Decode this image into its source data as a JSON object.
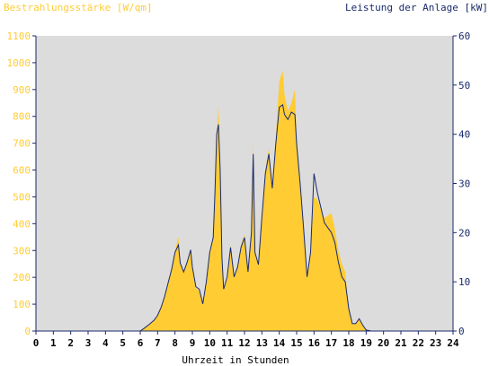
{
  "chart_data": {
    "type": "area",
    "title_left": "Bestrahlungsstärke [W/qm]",
    "title_right": "Leistung der Anlage [kW]",
    "xlabel": "Uhrzeit in Stunden",
    "x_ticks": [
      "0",
      "1",
      "2",
      "3",
      "4",
      "5",
      "6",
      "7",
      "8",
      "9",
      "10",
      "11",
      "12",
      "13",
      "14",
      "15",
      "16",
      "17",
      "18",
      "19",
      "20",
      "21",
      "22",
      "23",
      "24"
    ],
    "xlim": [
      0,
      24
    ],
    "y_left_ticks": [
      "0",
      "100",
      "200",
      "300",
      "400",
      "500",
      "600",
      "700",
      "800",
      "900",
      "1000",
      "1100"
    ],
    "ylim_left": [
      0,
      1100
    ],
    "y_right_ticks": [
      "0",
      "10",
      "20",
      "30",
      "40",
      "50",
      "60"
    ],
    "ylim_right": [
      0,
      60
    ],
    "grid": false,
    "colors": {
      "irradiance_fill": "#ffcc33",
      "power_line": "#1a2a6c",
      "plot_bg": "#dcdcdc",
      "left_axis_text": "#ffcc33",
      "right_axis_text": "#1a2a6c",
      "x_axis_text": "#000000"
    },
    "series": [
      {
        "axis": "left",
        "x": [
          0,
          6.0,
          6.2,
          6.5,
          6.8,
          7.0,
          7.2,
          7.4,
          7.6,
          7.8,
          8.0,
          8.2,
          8.3,
          8.5,
          8.7,
          8.9,
          9.0,
          9.2,
          9.4,
          9.6,
          9.8,
          10.0,
          10.2,
          10.3,
          10.4,
          10.5,
          10.6,
          10.7,
          10.8,
          11.0,
          11.2,
          11.4,
          11.6,
          11.8,
          12.0,
          12.2,
          12.4,
          12.5,
          12.6,
          12.8,
          13.0,
          13.2,
          13.4,
          13.6,
          13.8,
          14.0,
          14.2,
          14.3,
          14.5,
          14.7,
          14.9,
          15.0,
          15.2,
          15.4,
          15.6,
          15.8,
          16.0,
          16.2,
          16.4,
          16.6,
          16.8,
          17.0,
          17.2,
          17.4,
          17.6,
          17.8,
          18.0,
          18.2,
          18.4,
          18.6,
          18.8,
          19.0,
          19.3,
          24
        ],
        "values": [
          0,
          0,
          10,
          25,
          40,
          60,
          90,
          130,
          180,
          230,
          300,
          350,
          260,
          220,
          260,
          300,
          240,
          160,
          150,
          100,
          180,
          300,
          350,
          520,
          730,
          840,
          620,
          280,
          150,
          200,
          320,
          200,
          240,
          320,
          360,
          220,
          380,
          700,
          300,
          250,
          430,
          600,
          680,
          540,
          720,
          930,
          970,
          880,
          820,
          850,
          900,
          720,
          550,
          380,
          200,
          300,
          500,
          490,
          450,
          420,
          430,
          440,
          380,
          300,
          250,
          220,
          80,
          25,
          30,
          45,
          20,
          5,
          0,
          0
        ]
      },
      {
        "axis": "right",
        "x": [
          0,
          6.0,
          6.2,
          6.5,
          6.8,
          7.0,
          7.2,
          7.4,
          7.6,
          7.8,
          8.0,
          8.2,
          8.3,
          8.5,
          8.7,
          8.9,
          9.0,
          9.2,
          9.4,
          9.6,
          9.8,
          10.0,
          10.2,
          10.3,
          10.4,
          10.5,
          10.6,
          10.7,
          10.8,
          11.0,
          11.2,
          11.4,
          11.6,
          11.8,
          12.0,
          12.2,
          12.4,
          12.5,
          12.6,
          12.8,
          13.0,
          13.2,
          13.4,
          13.6,
          13.8,
          14.0,
          14.2,
          14.3,
          14.5,
          14.7,
          14.9,
          15.0,
          15.2,
          15.4,
          15.6,
          15.8,
          16.0,
          16.2,
          16.4,
          16.6,
          16.8,
          17.0,
          17.2,
          17.4,
          17.6,
          17.8,
          18.0,
          18.2,
          18.4,
          18.6,
          18.8,
          19.0,
          19.3,
          24
        ],
        "values": [
          0,
          0,
          0.5,
          1.3,
          2.2,
          3.2,
          4.8,
          7.0,
          9.7,
          12.4,
          16.0,
          17.5,
          13.8,
          12.0,
          14.0,
          16.5,
          13.0,
          9.0,
          8.5,
          5.5,
          10.0,
          16.0,
          19.0,
          28.0,
          40.0,
          42.0,
          33.0,
          15.0,
          8.5,
          11.0,
          17.0,
          11.0,
          13.0,
          17.0,
          19.0,
          12.0,
          20.0,
          36.0,
          16.0,
          13.5,
          23.0,
          32.0,
          36.0,
          29.0,
          38.0,
          45.5,
          46.0,
          44.0,
          43.0,
          44.5,
          44.0,
          38.0,
          30.0,
          21.0,
          11.0,
          16.0,
          32.0,
          28.0,
          25.0,
          22.0,
          21.0,
          20.0,
          18.0,
          14.0,
          11.0,
          10.0,
          4.5,
          1.5,
          1.5,
          2.5,
          1.2,
          0.2,
          0,
          0
        ]
      }
    ]
  }
}
